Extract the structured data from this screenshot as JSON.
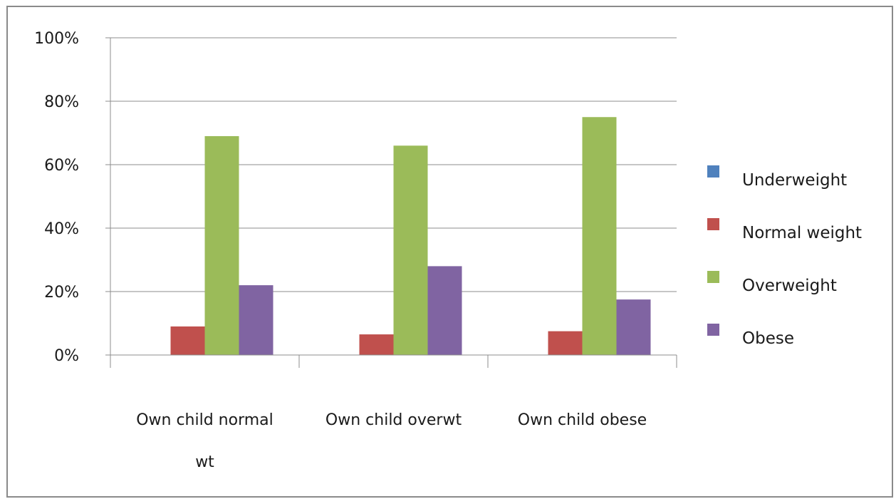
{
  "chart_data": {
    "type": "bar",
    "title": "",
    "xlabel": "",
    "ylabel": "",
    "categories": [
      "Own child normal wt",
      "Own child overwt",
      "Own child obese"
    ],
    "category_label_lines": [
      [
        "Own child normal",
        "wt"
      ],
      [
        "Own child overwt"
      ],
      [
        "Own child obese"
      ]
    ],
    "series": [
      {
        "name": "Underweight",
        "values": [
          0,
          0,
          0
        ],
        "color": "#4f81bd"
      },
      {
        "name": "Normal weight",
        "values": [
          9,
          6.5,
          7.5
        ],
        "color": "#c0504d"
      },
      {
        "name": "Overweight",
        "values": [
          69,
          66,
          75
        ],
        "color": "#9bbb59"
      },
      {
        "name": "Obese",
        "values": [
          22,
          28,
          17.5
        ],
        "color": "#8064a2"
      }
    ],
    "ylim": [
      0,
      100
    ],
    "y_ticks": [
      0,
      20,
      40,
      60,
      80,
      100
    ],
    "y_tick_labels": [
      "0%",
      "20%",
      "40%",
      "60%",
      "80%",
      "100%"
    ],
    "gridlines": true,
    "legend_position": "right"
  }
}
